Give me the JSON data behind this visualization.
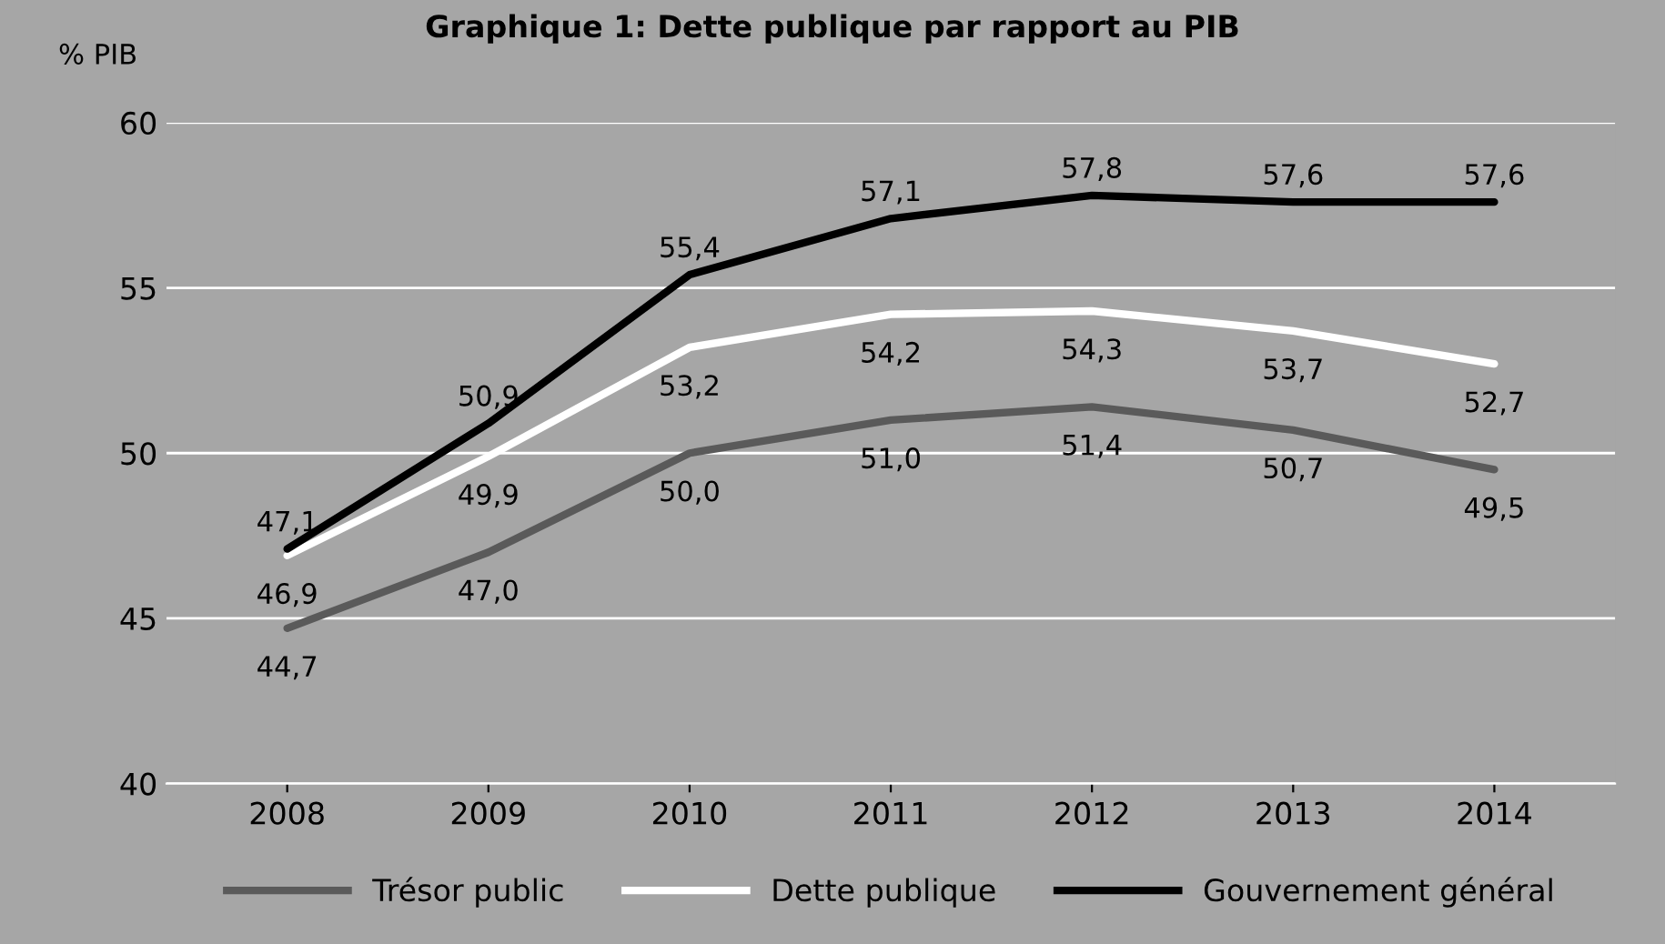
{
  "chart_data": {
    "type": "line",
    "title": "Graphique 1: Dette publique par rapport au PIB",
    "ylabel": "% PIB",
    "categories": [
      "2008",
      "2009",
      "2010",
      "2011",
      "2012",
      "2013",
      "2014"
    ],
    "series": [
      {
        "name": "Trésor public",
        "color": "#5a5a5a",
        "values": [
          44.7,
          47.0,
          50.0,
          51.0,
          51.4,
          50.7,
          49.5
        ],
        "value_labels": [
          "44,7",
          "47,0",
          "50,0",
          "51,0",
          "51,4",
          "50,7",
          "49,5"
        ]
      },
      {
        "name": "Dette publique",
        "color": "#ffffff",
        "values": [
          46.9,
          49.9,
          53.2,
          54.2,
          54.3,
          53.7,
          52.7
        ],
        "value_labels": [
          "46,9",
          "49,9",
          "53,2",
          "54,2",
          "54,3",
          "53,7",
          "52,7"
        ]
      },
      {
        "name": "Gouvernement général",
        "color": "#000000",
        "values": [
          47.1,
          50.9,
          55.4,
          57.1,
          57.8,
          57.6,
          57.6
        ],
        "value_labels": [
          "47,1",
          "50,9",
          "55,4",
          "57,1",
          "57,8",
          "57,6",
          "57,6"
        ]
      }
    ],
    "ylim": [
      40,
      60
    ],
    "yticks": [
      40,
      45,
      50,
      55,
      60
    ],
    "grid": "y",
    "legend": "bottom",
    "marker": "none",
    "line_style": "solid"
  }
}
